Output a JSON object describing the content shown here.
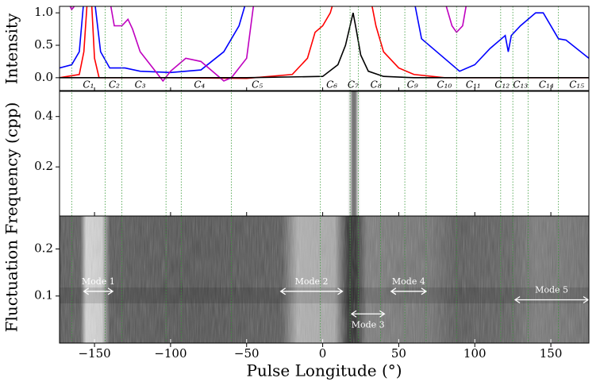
{
  "chart_data": [
    {
      "type": "line",
      "ylabel": "Intensity",
      "xlim": [
        -173,
        175
      ],
      "ylim": [
        -0.21,
        1.1
      ],
      "yticks": [
        {
          "value": 0.0,
          "label": "0.0"
        },
        {
          "value": 0.5,
          "label": "0.5"
        },
        {
          "value": 1.0,
          "label": "1.0"
        }
      ],
      "series": [
        {
          "color": "#ff0000",
          "x": [
            -173,
            -160,
            -157,
            -155,
            -152,
            -150,
            -147,
            -100,
            -50,
            -20,
            -10,
            -5,
            0,
            5,
            10,
            30,
            35,
            40,
            50,
            60,
            80,
            175
          ],
          "values": [
            0,
            0.05,
            0.4,
            1.1,
            1.2,
            0.3,
            0.0,
            0,
            -0.01,
            0.05,
            0.3,
            0.7,
            0.8,
            1.0,
            1.4,
            1.4,
            0.8,
            0.4,
            0.15,
            0.05,
            0,
            0
          ]
        },
        {
          "color": "#0000ff",
          "x": [
            -173,
            -165,
            -160,
            -157,
            -150,
            -146,
            -140,
            -130,
            -120,
            -100,
            -80,
            -65,
            -55,
            -50,
            60,
            65,
            75,
            90,
            100,
            110,
            120,
            122,
            124,
            130,
            140,
            145,
            155,
            160,
            175
          ],
          "values": [
            0.15,
            0.2,
            0.4,
            1.2,
            1.2,
            0.4,
            0.15,
            0.15,
            0.1,
            0.08,
            0.12,
            0.4,
            0.8,
            1.2,
            1.2,
            0.6,
            0.4,
            0.1,
            0.2,
            0.45,
            0.65,
            0.4,
            0.65,
            0.8,
            1.0,
            1.0,
            0.6,
            0.58,
            0.3
          ]
        },
        {
          "color": "#bf00bf",
          "x": [
            -168,
            -165,
            -160,
            -140,
            -137,
            -132,
            -128,
            -125,
            -120,
            -110,
            -105,
            -100,
            -90,
            -80,
            -70,
            -65,
            -60,
            -50,
            -45,
            80,
            85,
            88,
            92,
            95
          ],
          "values": [
            1.2,
            1.05,
            1.2,
            1.2,
            0.8,
            0.8,
            0.9,
            0.75,
            0.4,
            0.1,
            -0.05,
            0.1,
            0.3,
            0.25,
            0.05,
            -0.05,
            0.0,
            0.3,
            1.2,
            1.2,
            0.8,
            0.7,
            0.8,
            1.2
          ]
        },
        {
          "color": "#000000",
          "x": [
            -173,
            -150,
            -100,
            -50,
            0,
            10,
            15,
            18,
            20,
            22,
            25,
            30,
            40,
            60,
            175
          ],
          "values": [
            0,
            0,
            0,
            0,
            0.02,
            0.2,
            0.5,
            0.8,
            1.0,
            0.75,
            0.35,
            0.1,
            0.02,
            0,
            0
          ]
        }
      ],
      "component_lines": [
        -165,
        -143,
        -132,
        -103,
        -93,
        -60,
        -1.5,
        18,
        23.5,
        38,
        54,
        68,
        88,
        117,
        125,
        135,
        155
      ],
      "components": {
        "labels": [
          "C₁",
          "C₂",
          "C₃",
          "C₄",
          "C₅",
          "C₆",
          "C₇",
          "C₈",
          "C₉",
          "C₁₀",
          "C₁₁",
          "C₁₂",
          "C₁₃",
          "C₁₄",
          "C₁₅"
        ],
        "x": [
          -154,
          -137,
          -120,
          -81,
          -43,
          6,
          20,
          35,
          59,
          80,
          99,
          118,
          130,
          147,
          167
        ]
      }
    },
    {
      "type": "image",
      "ylabel": "Fluctuation Frequency (cpp)",
      "xlim": [
        -173,
        175
      ],
      "ylim": [
        0.005,
        0.5
      ],
      "yticks": [
        0.2,
        0.4
      ]
    },
    {
      "type": "image",
      "xlabel": "Pulse Longitude (°)",
      "xlim": [
        -173,
        175
      ],
      "ylim": [
        0,
        0.27
      ],
      "yticks": [
        0.1,
        0.2
      ],
      "xticks": [
        {
          "value": -150,
          "label": "−150"
        },
        {
          "value": -100,
          "label": "−100"
        },
        {
          "value": -50,
          "label": "−50"
        },
        {
          "value": 0,
          "label": "0"
        },
        {
          "value": 50,
          "label": "50"
        },
        {
          "value": 100,
          "label": "100"
        },
        {
          "value": 150,
          "label": "150"
        }
      ],
      "modes": [
        {
          "label": "Mode 1",
          "x": [
            -157,
            -138
          ],
          "y": 0.11
        },
        {
          "label": "Mode 2",
          "x": [
            -27.6,
            13
          ],
          "y": 0.11
        },
        {
          "label": "Mode 3",
          "x": [
            19,
            40.6
          ],
          "y": 0.062,
          "label_side": "below"
        },
        {
          "label": "Mode 4",
          "x": [
            45,
            68
          ],
          "y": 0.11
        },
        {
          "label": "Mode 5",
          "x": [
            126.5,
            174.5
          ],
          "y": 0.092
        }
      ]
    }
  ]
}
